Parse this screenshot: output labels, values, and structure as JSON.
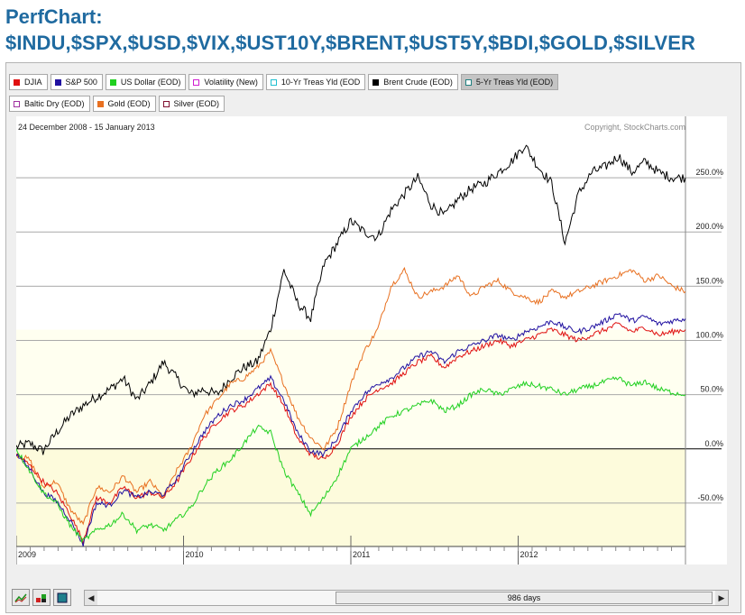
{
  "header": {
    "title": "PerfChart:",
    "symbols": "$INDU,$SPX,$USD,$VIX,$UST10Y,$BRENT,$UST5Y,$BDI,$GOLD,$SILVER"
  },
  "legend_row1": [
    {
      "label": "DJIA",
      "color": "#e01010",
      "checked": true
    },
    {
      "label": "S&P 500",
      "color": "#2010a0",
      "checked": true
    },
    {
      "label": "US Dollar (EOD)",
      "color": "#20d020",
      "checked": true
    },
    {
      "label": "Volatility (New)",
      "color": "#d020d0",
      "checked": false
    },
    {
      "label": "10-Yr Treas Yld (EOD",
      "color": "#20c0d0",
      "checked": false
    },
    {
      "label": "Brent Crude (EOD)",
      "color": "#000000",
      "checked": true
    },
    {
      "label": "5-Yr Treas Yld (EOD)",
      "color": "#208080",
      "checked": false,
      "selected": true
    }
  ],
  "legend_row2": [
    {
      "label": "Baltic Dry (EOD)",
      "color": "#a030a0",
      "checked": false
    },
    {
      "label": "Gold (EOD)",
      "color": "#e87020",
      "checked": true
    },
    {
      "label": "Silver (EOD)",
      "color": "#801030",
      "checked": false
    }
  ],
  "date_range": "24 December 2008 - 15 January 2013",
  "copyright": "Copyright, StockCharts.com",
  "scrollbar": {
    "label": "986 days",
    "left_arrow": "◀",
    "right_arrow": "▶"
  },
  "chart_data": {
    "type": "line",
    "x_ticks": [
      "2009",
      "2010",
      "2011",
      "2012"
    ],
    "y_ticks": [
      "250.0%",
      "200.0%",
      "150.0%",
      "100.0%",
      "50.0%",
      "0.0%",
      "-50.0%"
    ],
    "ylim": [
      -90,
      290
    ],
    "colors": {
      "background": "#ffffff",
      "neg_band": "#fdfbdc",
      "grid": "#a9a9a9",
      "zero": "#000000"
    },
    "series": [
      {
        "name": "Brent Crude (EOD)",
        "color": "#000000",
        "x": [
          0,
          0.02,
          0.04,
          0.06,
          0.08,
          0.1,
          0.12,
          0.14,
          0.16,
          0.18,
          0.2,
          0.22,
          0.24,
          0.26,
          0.28,
          0.3,
          0.32,
          0.34,
          0.36,
          0.38,
          0.4,
          0.42,
          0.44,
          0.46,
          0.48,
          0.5,
          0.52,
          0.54,
          0.56,
          0.58,
          0.6,
          0.62,
          0.64,
          0.66,
          0.68,
          0.7,
          0.72,
          0.74,
          0.76,
          0.78,
          0.8,
          0.82,
          0.84,
          0.86,
          0.88,
          0.9,
          0.92,
          0.94,
          0.96,
          0.98,
          1.0
        ],
        "y": [
          2,
          5,
          -2,
          15,
          30,
          40,
          48,
          55,
          65,
          45,
          60,
          80,
          65,
          50,
          55,
          50,
          65,
          75,
          80,
          110,
          165,
          135,
          120,
          170,
          190,
          210,
          200,
          195,
          220,
          235,
          250,
          225,
          215,
          230,
          240,
          245,
          255,
          265,
          280,
          260,
          245,
          190,
          235,
          255,
          260,
          270,
          255,
          265,
          255,
          250,
          250
        ]
      },
      {
        "name": "Gold (EOD)",
        "color": "#e87020",
        "x": [
          0,
          0.02,
          0.04,
          0.06,
          0.08,
          0.1,
          0.12,
          0.14,
          0.16,
          0.18,
          0.2,
          0.22,
          0.24,
          0.26,
          0.28,
          0.3,
          0.32,
          0.34,
          0.36,
          0.38,
          0.4,
          0.42,
          0.44,
          0.46,
          0.48,
          0.5,
          0.52,
          0.54,
          0.56,
          0.58,
          0.6,
          0.62,
          0.64,
          0.66,
          0.68,
          0.7,
          0.72,
          0.74,
          0.76,
          0.78,
          0.8,
          0.82,
          0.84,
          0.86,
          0.88,
          0.9,
          0.92,
          0.94,
          0.96,
          0.98,
          1.0
        ],
        "y": [
          -5,
          -10,
          -35,
          -30,
          -55,
          -70,
          -35,
          -40,
          -25,
          -40,
          -30,
          -45,
          -20,
          0,
          30,
          45,
          60,
          65,
          75,
          90,
          60,
          30,
          10,
          0,
          20,
          60,
          90,
          110,
          150,
          165,
          140,
          145,
          150,
          160,
          140,
          150,
          155,
          145,
          140,
          135,
          145,
          140,
          145,
          150,
          155,
          160,
          165,
          155,
          160,
          150,
          145
        ]
      },
      {
        "name": "DJIA",
        "color": "#e01010",
        "x": [
          0,
          0.02,
          0.04,
          0.06,
          0.08,
          0.1,
          0.12,
          0.14,
          0.16,
          0.18,
          0.2,
          0.22,
          0.24,
          0.26,
          0.28,
          0.3,
          0.32,
          0.34,
          0.36,
          0.38,
          0.4,
          0.42,
          0.44,
          0.46,
          0.48,
          0.5,
          0.52,
          0.54,
          0.56,
          0.58,
          0.6,
          0.62,
          0.64,
          0.66,
          0.68,
          0.7,
          0.72,
          0.74,
          0.76,
          0.78,
          0.8,
          0.82,
          0.84,
          0.86,
          0.88,
          0.9,
          0.92,
          0.94,
          0.96,
          0.98,
          1.0
        ],
        "y": [
          -5,
          -15,
          -30,
          -40,
          -60,
          -85,
          -45,
          -50,
          -35,
          -45,
          -40,
          -45,
          -30,
          -10,
          10,
          25,
          35,
          40,
          50,
          60,
          40,
          10,
          -5,
          -10,
          5,
          30,
          45,
          55,
          60,
          70,
          80,
          85,
          75,
          85,
          90,
          95,
          100,
          95,
          100,
          105,
          110,
          105,
          100,
          105,
          110,
          115,
          108,
          112,
          105,
          108,
          110
        ]
      },
      {
        "name": "S&P 500",
        "color": "#2010a0",
        "x": [
          0,
          0.02,
          0.04,
          0.06,
          0.08,
          0.1,
          0.12,
          0.14,
          0.16,
          0.18,
          0.2,
          0.22,
          0.24,
          0.26,
          0.28,
          0.3,
          0.32,
          0.34,
          0.36,
          0.38,
          0.4,
          0.42,
          0.44,
          0.46,
          0.48,
          0.5,
          0.52,
          0.54,
          0.56,
          0.58,
          0.6,
          0.62,
          0.64,
          0.66,
          0.68,
          0.7,
          0.72,
          0.74,
          0.76,
          0.78,
          0.8,
          0.82,
          0.84,
          0.86,
          0.88,
          0.9,
          0.92,
          0.94,
          0.96,
          0.98,
          1.0
        ],
        "y": [
          -5,
          -18,
          -40,
          -48,
          -65,
          -88,
          -50,
          -52,
          -38,
          -45,
          -40,
          -42,
          -28,
          -5,
          15,
          30,
          40,
          45,
          55,
          65,
          45,
          15,
          -2,
          -5,
          10,
          35,
          50,
          60,
          65,
          75,
          85,
          90,
          80,
          90,
          95,
          100,
          105,
          100,
          108,
          112,
          118,
          112,
          108,
          112,
          118,
          125,
          118,
          122,
          115,
          118,
          120
        ]
      },
      {
        "name": "US Dollar (EOD)",
        "color": "#20d020",
        "x": [
          0,
          0.02,
          0.04,
          0.06,
          0.08,
          0.1,
          0.12,
          0.14,
          0.16,
          0.18,
          0.2,
          0.22,
          0.24,
          0.26,
          0.28,
          0.3,
          0.32,
          0.34,
          0.36,
          0.38,
          0.4,
          0.42,
          0.44,
          0.46,
          0.48,
          0.5,
          0.52,
          0.54,
          0.56,
          0.58,
          0.6,
          0.62,
          0.64,
          0.66,
          0.68,
          0.7,
          0.72,
          0.74,
          0.76,
          0.78,
          0.8,
          0.82,
          0.84,
          0.86,
          0.88,
          0.9,
          0.92,
          0.94,
          0.96,
          0.98,
          1.0
        ],
        "y": [
          0,
          -20,
          -40,
          -50,
          -70,
          -85,
          -75,
          -70,
          -60,
          -75,
          -70,
          -75,
          -65,
          -55,
          -35,
          -20,
          -10,
          5,
          20,
          15,
          -20,
          -40,
          -60,
          -45,
          -25,
          0,
          10,
          20,
          30,
          35,
          40,
          45,
          35,
          40,
          50,
          55,
          50,
          55,
          60,
          58,
          55,
          50,
          55,
          58,
          62,
          65,
          58,
          62,
          55,
          52,
          50
        ]
      }
    ]
  }
}
